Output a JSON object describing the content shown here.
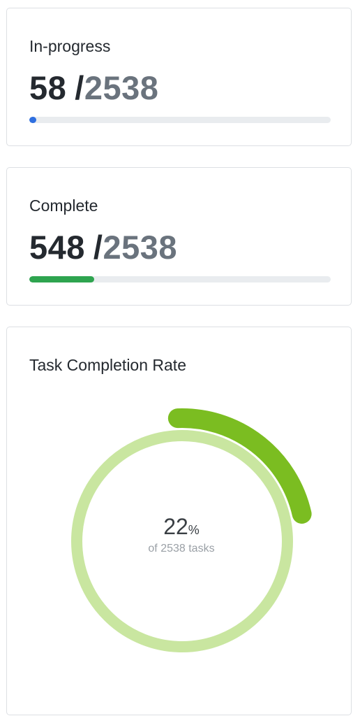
{
  "in_progress": {
    "title": "In-progress",
    "count": "58",
    "separator": "/",
    "total": "2538",
    "fraction": 0.0229,
    "color": "#2f6fe0"
  },
  "complete": {
    "title": "Complete",
    "count": "548",
    "separator": "/",
    "total": "2538",
    "fraction": 0.2159,
    "color": "#2ea44f"
  },
  "completion_rate": {
    "title": "Task Completion Rate",
    "percent_value": "22",
    "percent_unit": "%",
    "subtitle": "of 2538 tasks",
    "fraction": 0.22,
    "arc_color": "#7bbd21",
    "ring_color": "#c9e6a0"
  }
}
